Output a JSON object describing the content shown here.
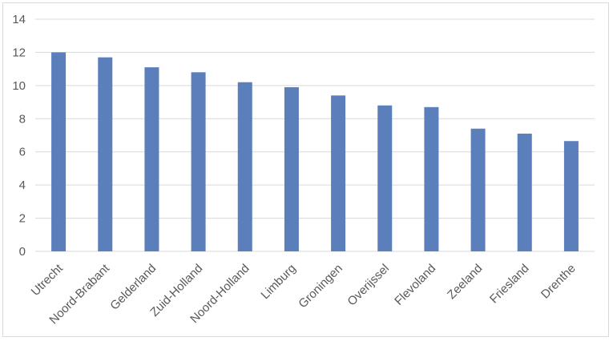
{
  "chart_data": {
    "type": "bar",
    "categories": [
      "Utrecht",
      "Noord-Brabant",
      "Gelderland",
      "Zuid-Holland",
      "Noord-Holland",
      "Limburg",
      "Groningen",
      "Overijssel",
      "Flevoland",
      "Zeeland",
      "Friesland",
      "Drenthe"
    ],
    "series": [
      {
        "values": [
          12.0,
          11.7,
          11.1,
          10.8,
          10.2,
          9.9,
          9.4,
          8.8,
          8.7,
          7.4,
          7.1,
          6.65
        ]
      }
    ],
    "ylim": [
      0,
      14
    ],
    "yticks": [
      "0",
      "2",
      "4",
      "6",
      "8",
      "10",
      "12",
      "14"
    ],
    "grid": true,
    "bar_color": "#5b7fba",
    "title": "",
    "xlabel": "",
    "ylabel": ""
  }
}
